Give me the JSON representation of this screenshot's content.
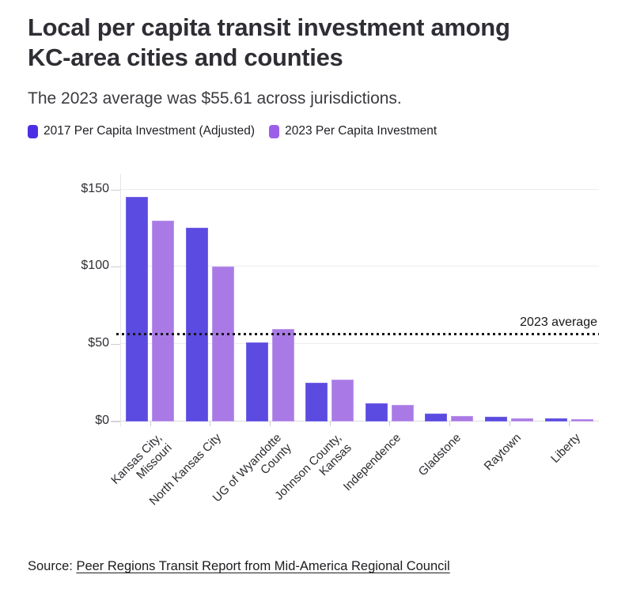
{
  "header": {
    "title": "Local per capita transit investment among KC-area cities and counties",
    "subtitle": "The 2023 average was $55.61 across jurisdictions."
  },
  "legend": {
    "items": [
      {
        "label": "2017 Per Capita Investment (Adjusted)",
        "color": "#4a2fe4"
      },
      {
        "label": "2023 Per Capita Investment",
        "color": "#9c5fe8"
      }
    ]
  },
  "chart_data": {
    "type": "bar",
    "categories": [
      "Kansas City, Missouri",
      "North Kansas City",
      "UG of Wyandotte County",
      "Johnson County, Kansas",
      "Independence",
      "Gladstone",
      "Raytown",
      "Liberty"
    ],
    "category_label_lines": [
      [
        "Kansas City,",
        "Missouri"
      ],
      [
        "North Kansas City"
      ],
      [
        "UG of Wyandotte",
        "County"
      ],
      [
        "Johnson County,",
        "Kansas"
      ],
      [
        "Independence"
      ],
      [
        "Gladstone"
      ],
      [
        "Raytown"
      ],
      [
        "Liberty"
      ]
    ],
    "series": [
      {
        "name": "2017 Per Capita Investment (Adjusted)",
        "color": "#5b4be0",
        "edge_color": "#7365e6",
        "values": [
          145,
          125,
          51,
          25,
          12,
          5,
          3,
          2.2
        ]
      },
      {
        "name": "2023 Per Capita Investment",
        "color": "#a97ae5",
        "edge_color": "#bd97ec",
        "values": [
          130,
          100,
          60,
          27,
          10.5,
          3.5,
          2.3,
          1.6
        ]
      }
    ],
    "y_ticks": [
      {
        "label": "$0",
        "value": 0
      },
      {
        "label": "$50",
        "value": 50
      },
      {
        "label": "$100",
        "value": 100
      },
      {
        "label": "$150",
        "value": 150
      }
    ],
    "ylim": [
      0,
      160
    ],
    "grid": "horizontal",
    "legend_position": "top-left",
    "average_line": {
      "value": 55.61,
      "label": "2023 average"
    }
  },
  "source": {
    "prefix": "Source: ",
    "link_text": "Peer Regions Transit Report from Mid-America Regional Council"
  }
}
